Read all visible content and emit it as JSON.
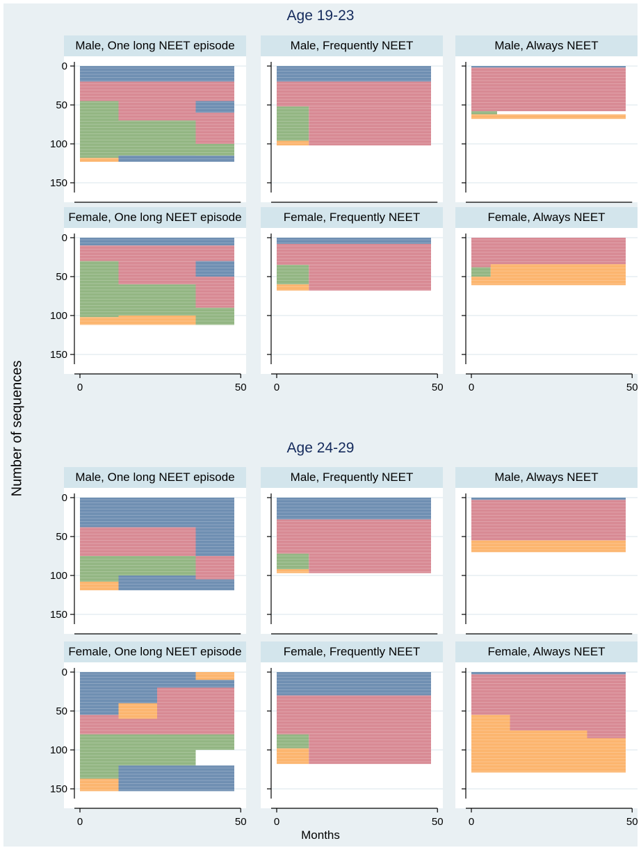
{
  "figure": {
    "ylabel": "Number of sequences",
    "xlabel": "Months",
    "colors": {
      "blue": "#6f8fb2",
      "red": "#d88a94",
      "green": "#93b683",
      "orange": "#fcb56e"
    }
  },
  "chart_data": [
    {
      "type": "sequence_index",
      "group": "Age 19-23",
      "panels": [
        {
          "title": "Male, One long NEET episode",
          "total": 123,
          "blocks": [
            {
              "state": "blue",
              "seq": [
                0,
                20
              ],
              "months": [
                0,
                48
              ]
            },
            {
              "state": "red",
              "seq": [
                20,
                45
              ],
              "months": [
                0,
                48
              ]
            },
            {
              "state": "green",
              "seq": [
                45,
                118
              ],
              "months": [
                0,
                12
              ]
            },
            {
              "state": "orange",
              "seq": [
                118,
                123
              ],
              "months": [
                0,
                12
              ]
            },
            {
              "state": "red",
              "seq": [
                45,
                70
              ],
              "months": [
                12,
                36
              ]
            },
            {
              "state": "green",
              "seq": [
                70,
                115
              ],
              "months": [
                12,
                36
              ]
            },
            {
              "state": "blue",
              "seq": [
                115,
                123
              ],
              "months": [
                12,
                48
              ]
            },
            {
              "state": "blue",
              "seq": [
                45,
                60
              ],
              "months": [
                36,
                48
              ]
            },
            {
              "state": "red",
              "seq": [
                60,
                100
              ],
              "months": [
                36,
                48
              ]
            },
            {
              "state": "green",
              "seq": [
                100,
                115
              ],
              "months": [
                36,
                48
              ]
            }
          ]
        },
        {
          "title": "Male, Frequently NEET",
          "total": 102,
          "blocks": [
            {
              "state": "blue",
              "seq": [
                0,
                20
              ],
              "months": [
                0,
                48
              ]
            },
            {
              "state": "red",
              "seq": [
                20,
                52
              ],
              "months": [
                0,
                48
              ]
            },
            {
              "state": "green",
              "seq": [
                52,
                96
              ],
              "months": [
                0,
                10
              ]
            },
            {
              "state": "orange",
              "seq": [
                96,
                102
              ],
              "months": [
                0,
                10
              ]
            },
            {
              "state": "red",
              "seq": [
                52,
                102
              ],
              "months": [
                10,
                48
              ]
            }
          ]
        },
        {
          "title": "Male, Always NEET",
          "total": 68,
          "blocks": [
            {
              "state": "blue",
              "seq": [
                0,
                2
              ],
              "months": [
                0,
                48
              ]
            },
            {
              "state": "red",
              "seq": [
                2,
                58
              ],
              "months": [
                0,
                48
              ]
            },
            {
              "state": "green",
              "seq": [
                58,
                62
              ],
              "months": [
                0,
                8
              ]
            },
            {
              "state": "orange",
              "seq": [
                62,
                68
              ],
              "months": [
                0,
                48
              ]
            }
          ]
        }
      ]
    },
    {
      "type": "sequence_index",
      "group": "Age 19-23 female",
      "panels": [
        {
          "title": "Female, One long NEET episode",
          "total": 112,
          "blocks": [
            {
              "state": "blue",
              "seq": [
                0,
                10
              ],
              "months": [
                0,
                48
              ]
            },
            {
              "state": "red",
              "seq": [
                10,
                30
              ],
              "months": [
                0,
                48
              ]
            },
            {
              "state": "green",
              "seq": [
                30,
                102
              ],
              "months": [
                0,
                12
              ]
            },
            {
              "state": "orange",
              "seq": [
                102,
                112
              ],
              "months": [
                0,
                12
              ]
            },
            {
              "state": "red",
              "seq": [
                30,
                60
              ],
              "months": [
                12,
                36
              ]
            },
            {
              "state": "green",
              "seq": [
                60,
                100
              ],
              "months": [
                12,
                36
              ]
            },
            {
              "state": "orange",
              "seq": [
                100,
                112
              ],
              "months": [
                12,
                36
              ]
            },
            {
              "state": "blue",
              "seq": [
                30,
                50
              ],
              "months": [
                36,
                48
              ]
            },
            {
              "state": "red",
              "seq": [
                50,
                90
              ],
              "months": [
                36,
                48
              ]
            },
            {
              "state": "green",
              "seq": [
                90,
                112
              ],
              "months": [
                36,
                48
              ]
            }
          ]
        },
        {
          "title": "Female, Frequently NEET",
          "total": 68,
          "blocks": [
            {
              "state": "blue",
              "seq": [
                0,
                8
              ],
              "months": [
                0,
                48
              ]
            },
            {
              "state": "red",
              "seq": [
                8,
                35
              ],
              "months": [
                0,
                48
              ]
            },
            {
              "state": "green",
              "seq": [
                35,
                60
              ],
              "months": [
                0,
                10
              ]
            },
            {
              "state": "orange",
              "seq": [
                60,
                68
              ],
              "months": [
                0,
                10
              ]
            },
            {
              "state": "red",
              "seq": [
                35,
                68
              ],
              "months": [
                10,
                48
              ]
            }
          ]
        },
        {
          "title": "Female, Always NEET",
          "total": 61,
          "blocks": [
            {
              "state": "red",
              "seq": [
                0,
                38
              ],
              "months": [
                0,
                48
              ]
            },
            {
              "state": "green",
              "seq": [
                38,
                50
              ],
              "months": [
                0,
                6
              ]
            },
            {
              "state": "orange",
              "seq": [
                50,
                61
              ],
              "months": [
                0,
                48
              ]
            },
            {
              "state": "orange",
              "seq": [
                34,
                50
              ],
              "months": [
                6,
                48
              ]
            }
          ]
        }
      ]
    },
    {
      "type": "sequence_index",
      "group": "Age 24-29",
      "panels": [
        {
          "title": "Male, One long NEET episode",
          "total": 119,
          "blocks": [
            {
              "state": "blue",
              "seq": [
                0,
                38
              ],
              "months": [
                0,
                48
              ]
            },
            {
              "state": "red",
              "seq": [
                38,
                75
              ],
              "months": [
                0,
                48
              ]
            },
            {
              "state": "green",
              "seq": [
                75,
                108
              ],
              "months": [
                0,
                12
              ]
            },
            {
              "state": "orange",
              "seq": [
                108,
                119
              ],
              "months": [
                0,
                12
              ]
            },
            {
              "state": "green",
              "seq": [
                75,
                100
              ],
              "months": [
                12,
                36
              ]
            },
            {
              "state": "blue",
              "seq": [
                100,
                119
              ],
              "months": [
                12,
                36
              ]
            },
            {
              "state": "blue",
              "seq": [
                38,
                75
              ],
              "months": [
                36,
                48
              ]
            },
            {
              "state": "red",
              "seq": [
                75,
                105
              ],
              "months": [
                36,
                48
              ]
            },
            {
              "state": "blue",
              "seq": [
                105,
                119
              ],
              "months": [
                36,
                48
              ]
            }
          ]
        },
        {
          "title": "Male, Frequently NEET",
          "total": 97,
          "blocks": [
            {
              "state": "blue",
              "seq": [
                0,
                28
              ],
              "months": [
                0,
                48
              ]
            },
            {
              "state": "red",
              "seq": [
                28,
                72
              ],
              "months": [
                0,
                48
              ]
            },
            {
              "state": "green",
              "seq": [
                72,
                92
              ],
              "months": [
                0,
                10
              ]
            },
            {
              "state": "orange",
              "seq": [
                92,
                97
              ],
              "months": [
                0,
                10
              ]
            },
            {
              "state": "red",
              "seq": [
                72,
                97
              ],
              "months": [
                10,
                48
              ]
            }
          ]
        },
        {
          "title": "Male, Always NEET",
          "total": 70,
          "blocks": [
            {
              "state": "blue",
              "seq": [
                0,
                3
              ],
              "months": [
                0,
                48
              ]
            },
            {
              "state": "red",
              "seq": [
                3,
                55
              ],
              "months": [
                0,
                48
              ]
            },
            {
              "state": "orange",
              "seq": [
                55,
                70
              ],
              "months": [
                0,
                48
              ]
            }
          ]
        }
      ]
    },
    {
      "type": "sequence_index",
      "group": "Age 24-29 female",
      "panels": [
        {
          "title": "Female, One long NEET episode",
          "total": 153,
          "blocks": [
            {
              "state": "blue",
              "seq": [
                0,
                55
              ],
              "months": [
                0,
                48
              ]
            },
            {
              "state": "red",
              "seq": [
                55,
                80
              ],
              "months": [
                0,
                48
              ]
            },
            {
              "state": "green",
              "seq": [
                80,
                137
              ],
              "months": [
                0,
                12
              ]
            },
            {
              "state": "orange",
              "seq": [
                137,
                153
              ],
              "months": [
                0,
                12
              ]
            },
            {
              "state": "orange",
              "seq": [
                40,
                60
              ],
              "months": [
                12,
                24
              ]
            },
            {
              "state": "green",
              "seq": [
                80,
                120
              ],
              "months": [
                12,
                36
              ]
            },
            {
              "state": "blue",
              "seq": [
                120,
                153
              ],
              "months": [
                12,
                48
              ]
            },
            {
              "state": "red",
              "seq": [
                20,
                80
              ],
              "months": [
                24,
                48
              ]
            },
            {
              "state": "orange",
              "seq": [
                0,
                10
              ],
              "months": [
                36,
                48
              ]
            },
            {
              "state": "green",
              "seq": [
                80,
                100
              ],
              "months": [
                36,
                48
              ]
            }
          ]
        },
        {
          "title": "Female, Frequently NEET",
          "total": 118,
          "blocks": [
            {
              "state": "blue",
              "seq": [
                0,
                30
              ],
              "months": [
                0,
                48
              ]
            },
            {
              "state": "red",
              "seq": [
                30,
                80
              ],
              "months": [
                0,
                48
              ]
            },
            {
              "state": "green",
              "seq": [
                80,
                98
              ],
              "months": [
                0,
                10
              ]
            },
            {
              "state": "orange",
              "seq": [
                98,
                118
              ],
              "months": [
                0,
                10
              ]
            },
            {
              "state": "red",
              "seq": [
                80,
                118
              ],
              "months": [
                10,
                48
              ]
            }
          ]
        },
        {
          "title": "Female, Always NEET",
          "total": 129,
          "blocks": [
            {
              "state": "blue",
              "seq": [
                0,
                3
              ],
              "months": [
                0,
                48
              ]
            },
            {
              "state": "red",
              "seq": [
                3,
                55
              ],
              "months": [
                0,
                48
              ]
            },
            {
              "state": "orange",
              "seq": [
                55,
                129
              ],
              "months": [
                0,
                48
              ]
            },
            {
              "state": "red",
              "seq": [
                55,
                75
              ],
              "months": [
                12,
                48
              ]
            },
            {
              "state": "red",
              "seq": [
                75,
                85
              ],
              "months": [
                36,
                48
              ]
            }
          ]
        }
      ]
    }
  ],
  "axes": {
    "yticks": [
      "0",
      "50",
      "100",
      "150"
    ],
    "xticks": [
      "0",
      "50"
    ],
    "ylim": [
      0,
      160
    ],
    "xlim": [
      -2,
      50
    ]
  },
  "groups": [
    "Age 19-23",
    "Age 24-29"
  ]
}
